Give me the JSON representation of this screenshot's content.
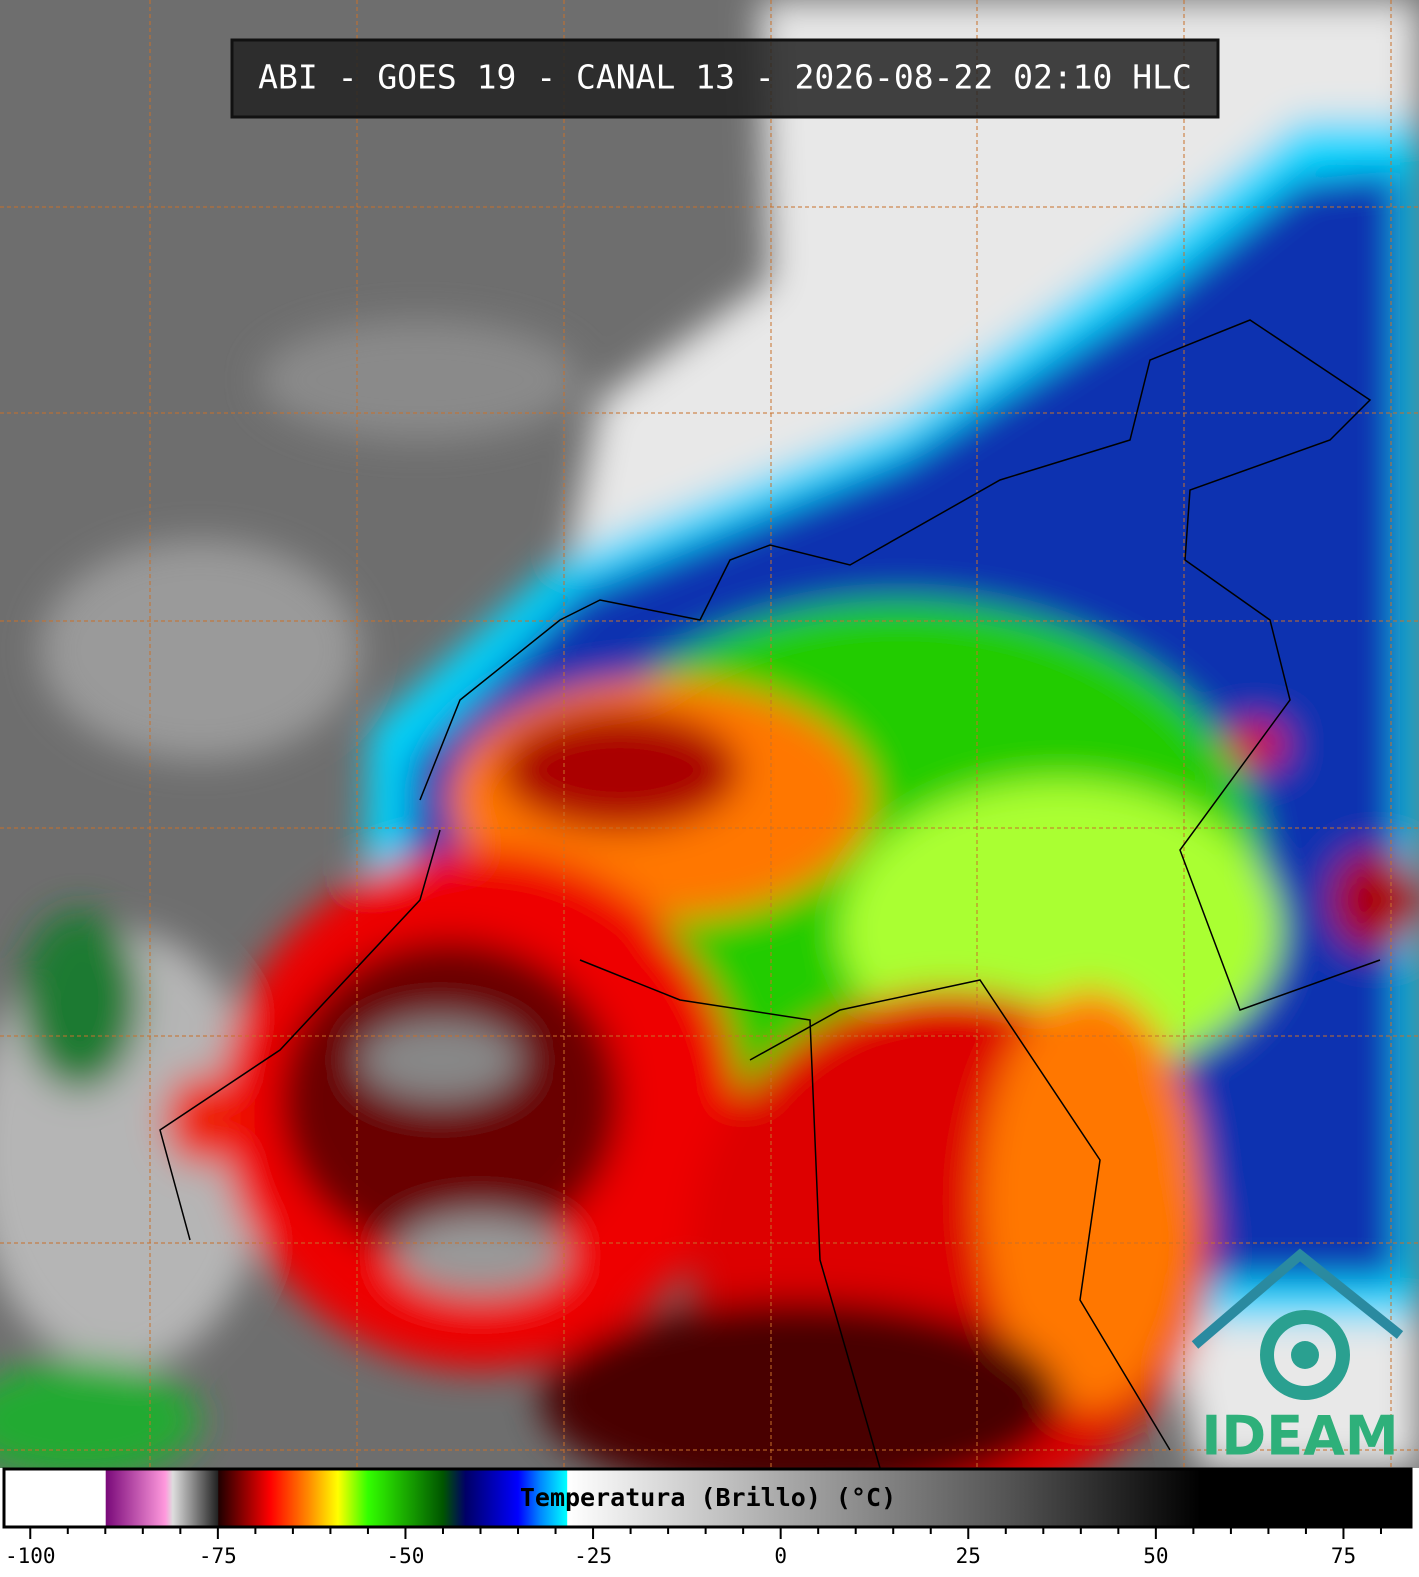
{
  "title": "ABI - GOES 19 - CANAL 13 - 2026-08-22 02:10 HLC",
  "colorbar": {
    "label": "Temperatura (Brillo) (°C)",
    "lim": [
      -103.5,
      84
    ],
    "ticks": [
      -100,
      -75,
      -50,
      -25,
      0,
      25,
      50,
      75
    ],
    "minor_ticks": [
      -95,
      -90,
      -85,
      -80,
      -70,
      -65,
      -60,
      -55,
      -45,
      -40,
      -35,
      -30,
      -20,
      -15,
      -10,
      -5,
      5,
      10,
      15,
      20,
      30,
      35,
      40,
      45,
      55,
      60,
      65,
      70,
      80
    ],
    "colormap": [
      {
        "value": -103.5,
        "color": "#ffffff"
      },
      {
        "value": -90,
        "color": "#ffffff"
      },
      {
        "value": -89.9,
        "color": "#7a0a7a"
      },
      {
        "value": -82,
        "color": "#ff99dd"
      },
      {
        "value": -81,
        "color": "#dddddd"
      },
      {
        "value": -75,
        "color": "#222222"
      },
      {
        "value": -74.9,
        "color": "#200000"
      },
      {
        "value": -68,
        "color": "#ff0000"
      },
      {
        "value": -63,
        "color": "#ff8800"
      },
      {
        "value": -59,
        "color": "#ffff00"
      },
      {
        "value": -55,
        "color": "#33ff00"
      },
      {
        "value": -45,
        "color": "#005500"
      },
      {
        "value": -42,
        "color": "#000066"
      },
      {
        "value": -35,
        "color": "#0000ff"
      },
      {
        "value": -32,
        "color": "#0088ff"
      },
      {
        "value": -28.5,
        "color": "#00ffff"
      },
      {
        "value": -28.4,
        "color": "#ffffff"
      },
      {
        "value": 0,
        "color": "#aaaaaa"
      },
      {
        "value": 30,
        "color": "#555555"
      },
      {
        "value": 56,
        "color": "#000000"
      },
      {
        "value": 84,
        "color": "#000000"
      }
    ]
  },
  "logo": {
    "text": "IDEAM"
  }
}
